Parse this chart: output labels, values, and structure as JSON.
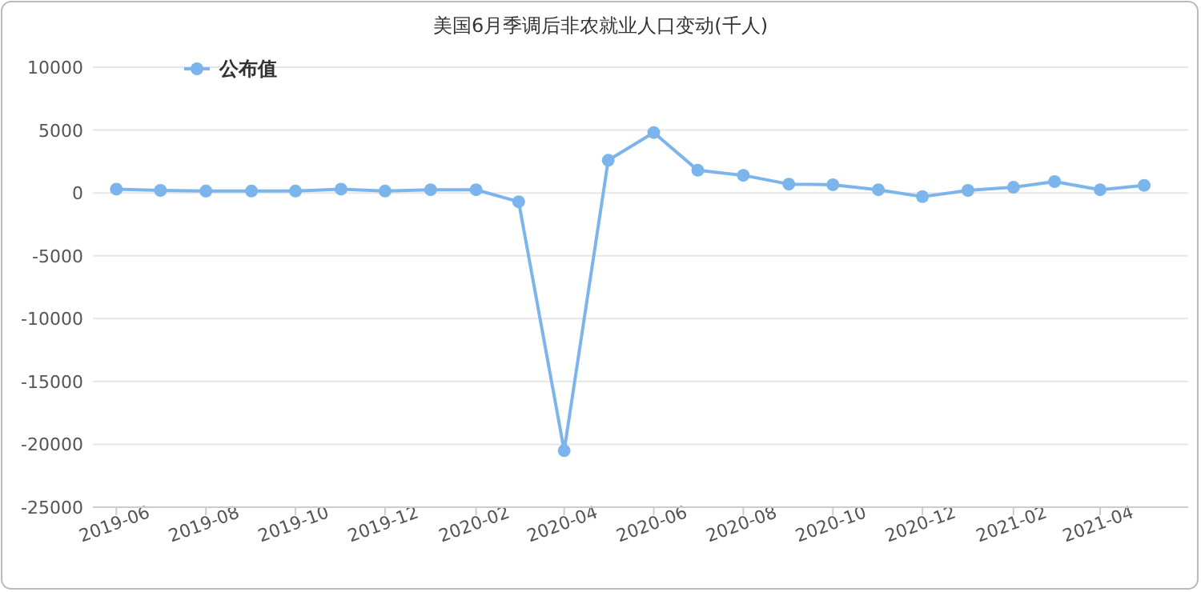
{
  "chart_data": {
    "type": "line",
    "title": "美国6月季调后非农就业人口变动(千人)",
    "x": [
      "2019-06",
      "2019-07",
      "2019-08",
      "2019-09",
      "2019-10",
      "2019-11",
      "2019-12",
      "2020-01",
      "2020-02",
      "2020-03",
      "2020-04",
      "2020-05",
      "2020-06",
      "2020-07",
      "2020-08",
      "2020-09",
      "2020-10",
      "2020-11",
      "2020-12",
      "2021-01",
      "2021-02",
      "2021-03",
      "2021-04",
      "2021-05"
    ],
    "series": [
      {
        "name": "公布值",
        "color": "#7cb5ec",
        "values": [
          300,
          200,
          150,
          150,
          150,
          300,
          150,
          250,
          250,
          -700,
          -20500,
          2600,
          4800,
          1800,
          1400,
          700,
          650,
          250,
          -300,
          200,
          450,
          900,
          250,
          600
        ]
      }
    ],
    "xlim": [
      "2019-05-16",
      "2021-05-31"
    ],
    "xticks": [
      "2019-06",
      "2019-08",
      "2019-10",
      "2019-12",
      "2020-02",
      "2020-04",
      "2020-06",
      "2020-08",
      "2020-10",
      "2020-12",
      "2021-02",
      "2021-04"
    ],
    "ylim": [
      -25000,
      10000
    ],
    "yticks": [
      -25000,
      -20000,
      -15000,
      -10000,
      -5000,
      0,
      5000,
      10000
    ],
    "grid": "y",
    "legend": "top left",
    "marker": "circle",
    "line_style": "solid"
  }
}
